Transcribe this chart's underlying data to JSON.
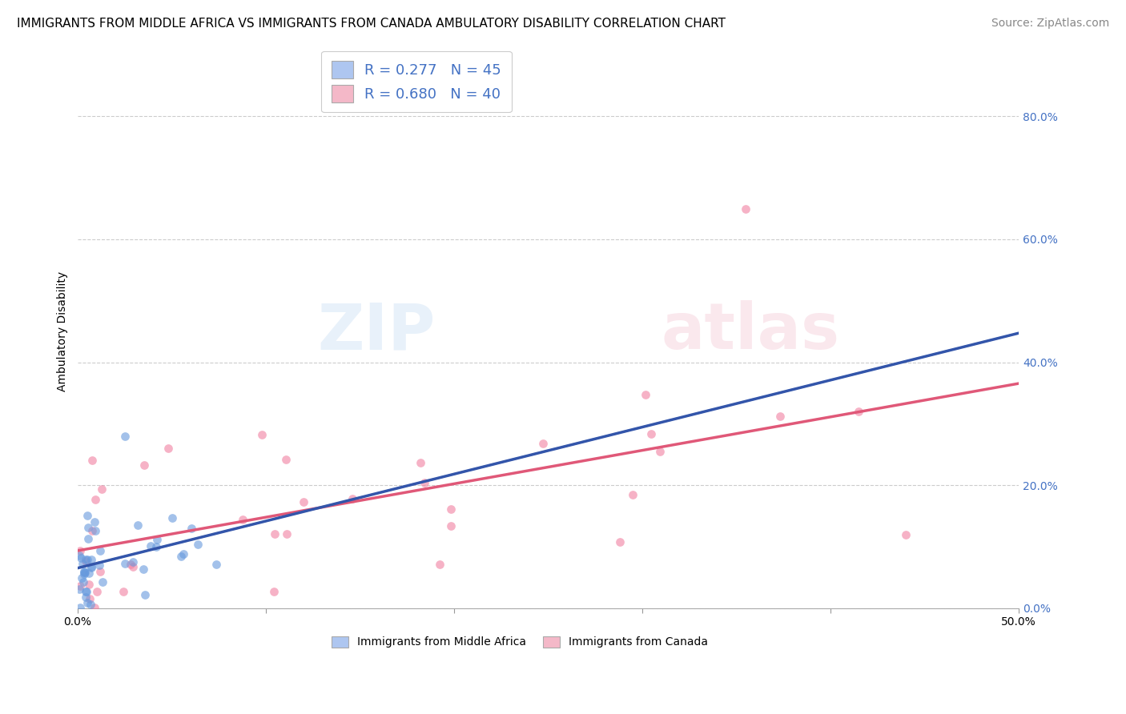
{
  "title": "IMMIGRANTS FROM MIDDLE AFRICA VS IMMIGRANTS FROM CANADA AMBULATORY DISABILITY CORRELATION CHART",
  "source": "Source: ZipAtlas.com",
  "ylabel": "Ambulatory Disability",
  "xlim": [
    0.0,
    0.5
  ],
  "ylim": [
    0.0,
    0.9
  ],
  "yticks": [
    0.0,
    0.2,
    0.4,
    0.6,
    0.8
  ],
  "ytick_labels_right": [
    "0.0%",
    "20.0%",
    "40.0%",
    "60.0%",
    "80.0%"
  ],
  "xtick_positions": [
    0.0,
    0.1,
    0.2,
    0.3,
    0.4,
    0.5
  ],
  "legend1_color": "#aec6f0",
  "legend2_color": "#f4b8c8",
  "series1_color": "#6699dd",
  "series2_color": "#f080a0",
  "series1_line_color": "#3355aa",
  "series2_line_color": "#e05878",
  "series1_dash_color": "#88bbee",
  "background_color": "#ffffff",
  "R1": 0.277,
  "N1": 45,
  "R2": 0.68,
  "N2": 40,
  "title_fontsize": 11,
  "source_fontsize": 10,
  "axis_label_fontsize": 10,
  "tick_fontsize": 10,
  "legend_fontsize": 13
}
